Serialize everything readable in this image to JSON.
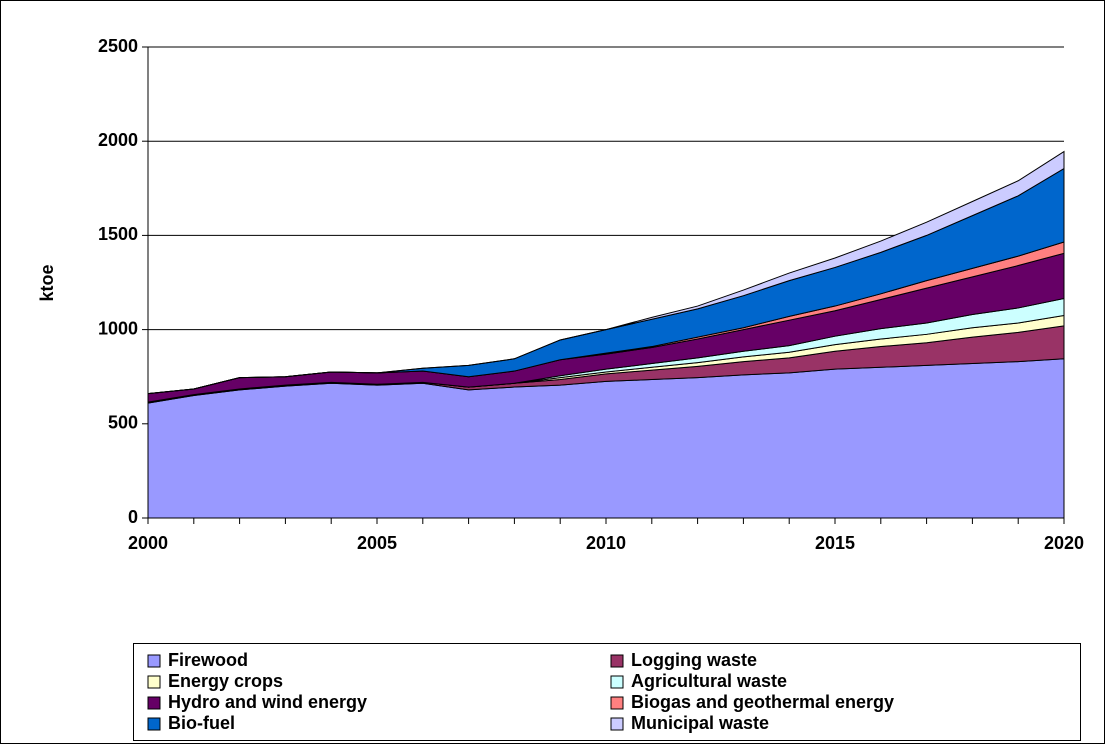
{
  "chart_data": {
    "type": "stacked_area",
    "y_label": "ktoe",
    "x": [
      2000,
      2001,
      2002,
      2003,
      2004,
      2005,
      2006,
      2007,
      2008,
      2009,
      2010,
      2011,
      2012,
      2013,
      2014,
      2015,
      2016,
      2017,
      2018,
      2019,
      2020
    ],
    "xlim": [
      2000,
      2020
    ],
    "xticks": [
      2000,
      2005,
      2010,
      2015,
      2020
    ],
    "ylim": [
      0,
      2500
    ],
    "yticks": [
      0,
      500,
      1000,
      1500,
      2000,
      2500
    ],
    "grid": true,
    "series": [
      {
        "name": "Firewood",
        "color": "#9999ff",
        "values": [
          610,
          650,
          680,
          700,
          715,
          705,
          715,
          680,
          695,
          705,
          725,
          735,
          745,
          760,
          770,
          790,
          800,
          810,
          820,
          830,
          845
        ]
      },
      {
        "name": "Logging waste",
        "color": "#993366",
        "values": [
          5,
          5,
          5,
          5,
          5,
          5,
          5,
          15,
          20,
          30,
          40,
          50,
          60,
          70,
          80,
          95,
          110,
          120,
          140,
          155,
          175
        ]
      },
      {
        "name": "Energy crops",
        "color": "#ffffcc",
        "values": [
          0,
          0,
          0,
          0,
          0,
          0,
          0,
          0,
          0,
          10,
          10,
          15,
          20,
          25,
          30,
          35,
          40,
          45,
          50,
          50,
          55
        ]
      },
      {
        "name": "Agricultural waste",
        "color": "#ccffff",
        "values": [
          0,
          0,
          0,
          0,
          0,
          0,
          0,
          0,
          0,
          10,
          15,
          20,
          25,
          30,
          35,
          45,
          55,
          60,
          70,
          80,
          90
        ]
      },
      {
        "name": "Hydro and wind energy",
        "color": "#660066",
        "values": [
          45,
          30,
          60,
          45,
          55,
          60,
          60,
          55,
          65,
          85,
          80,
          85,
          100,
          115,
          135,
          135,
          155,
          185,
          200,
          225,
          240
        ]
      },
      {
        "name": "Biogas and geothermal energy",
        "color": "#ff8080",
        "values": [
          0,
          0,
          0,
          0,
          0,
          0,
          0,
          0,
          0,
          0,
          5,
          5,
          10,
          10,
          20,
          25,
          30,
          40,
          45,
          50,
          60
        ]
      },
      {
        "name": "Bio-fuel",
        "color": "#0066cc",
        "values": [
          0,
          0,
          0,
          0,
          0,
          0,
          15,
          60,
          65,
          105,
          125,
          145,
          150,
          170,
          190,
          205,
          220,
          240,
          280,
          320,
          390
        ]
      },
      {
        "name": "Municipal waste",
        "color": "#ccccff",
        "values": [
          0,
          0,
          0,
          0,
          0,
          0,
          0,
          0,
          0,
          0,
          0,
          10,
          15,
          30,
          40,
          50,
          60,
          70,
          75,
          80,
          90
        ]
      }
    ]
  }
}
